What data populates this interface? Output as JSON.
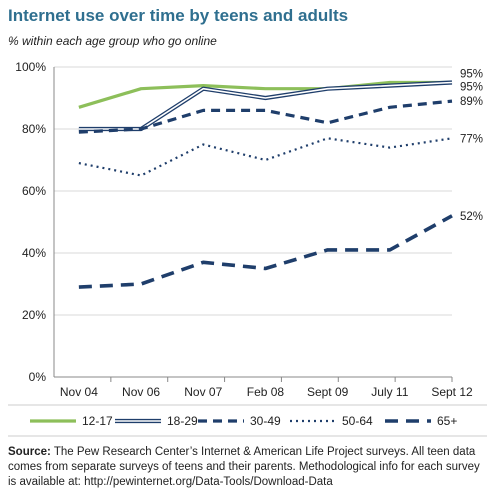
{
  "title": "Internet use over time by teens and adults",
  "subtitle": "% within each age group who go online",
  "source_label": "Source:",
  "source_text": "The Pew Research Center’s Internet & American Life Project surveys. All teen data comes from separate surveys of teens and their parents. Methodological info for each survey is available at: http://pewinternet.org/Data-Tools/Download-Data",
  "colors": {
    "title": "#2f6f8f",
    "green": "#8dbf5a",
    "navy": "#1f3e6b",
    "grid": "#d9d9d9"
  },
  "chart_data": {
    "type": "line",
    "categories": [
      "Nov 04",
      "Nov 06",
      "Nov 07",
      "Feb 08",
      "Sept 09",
      "July 11",
      "Sept 12"
    ],
    "ylim": [
      0,
      100
    ],
    "yticks": [
      "0%",
      "20%",
      "40%",
      "60%",
      "80%",
      "100%"
    ],
    "grid": "horizontal",
    "legend_position": "bottom",
    "series": [
      {
        "name": "12-17",
        "values": [
          87,
          93,
          94,
          93,
          93,
          95,
          95
        ],
        "end_label": "95%",
        "style": "solid-green"
      },
      {
        "name": "18-29",
        "values": [
          80,
          80,
          93,
          90,
          93,
          94,
          95
        ],
        "end_label": "95%",
        "style": "double-navy"
      },
      {
        "name": "30-49",
        "values": [
          79,
          80,
          86,
          86,
          82,
          87,
          89
        ],
        "end_label": "89%",
        "style": "dashed-navy"
      },
      {
        "name": "50-64",
        "values": [
          69,
          65,
          75,
          70,
          77,
          74,
          77
        ],
        "end_label": "77%",
        "style": "dotted-navy"
      },
      {
        "name": "65+",
        "values": [
          29,
          30,
          37,
          35,
          41,
          41,
          52
        ],
        "end_label": "52%",
        "style": "longdash-navy"
      }
    ]
  }
}
